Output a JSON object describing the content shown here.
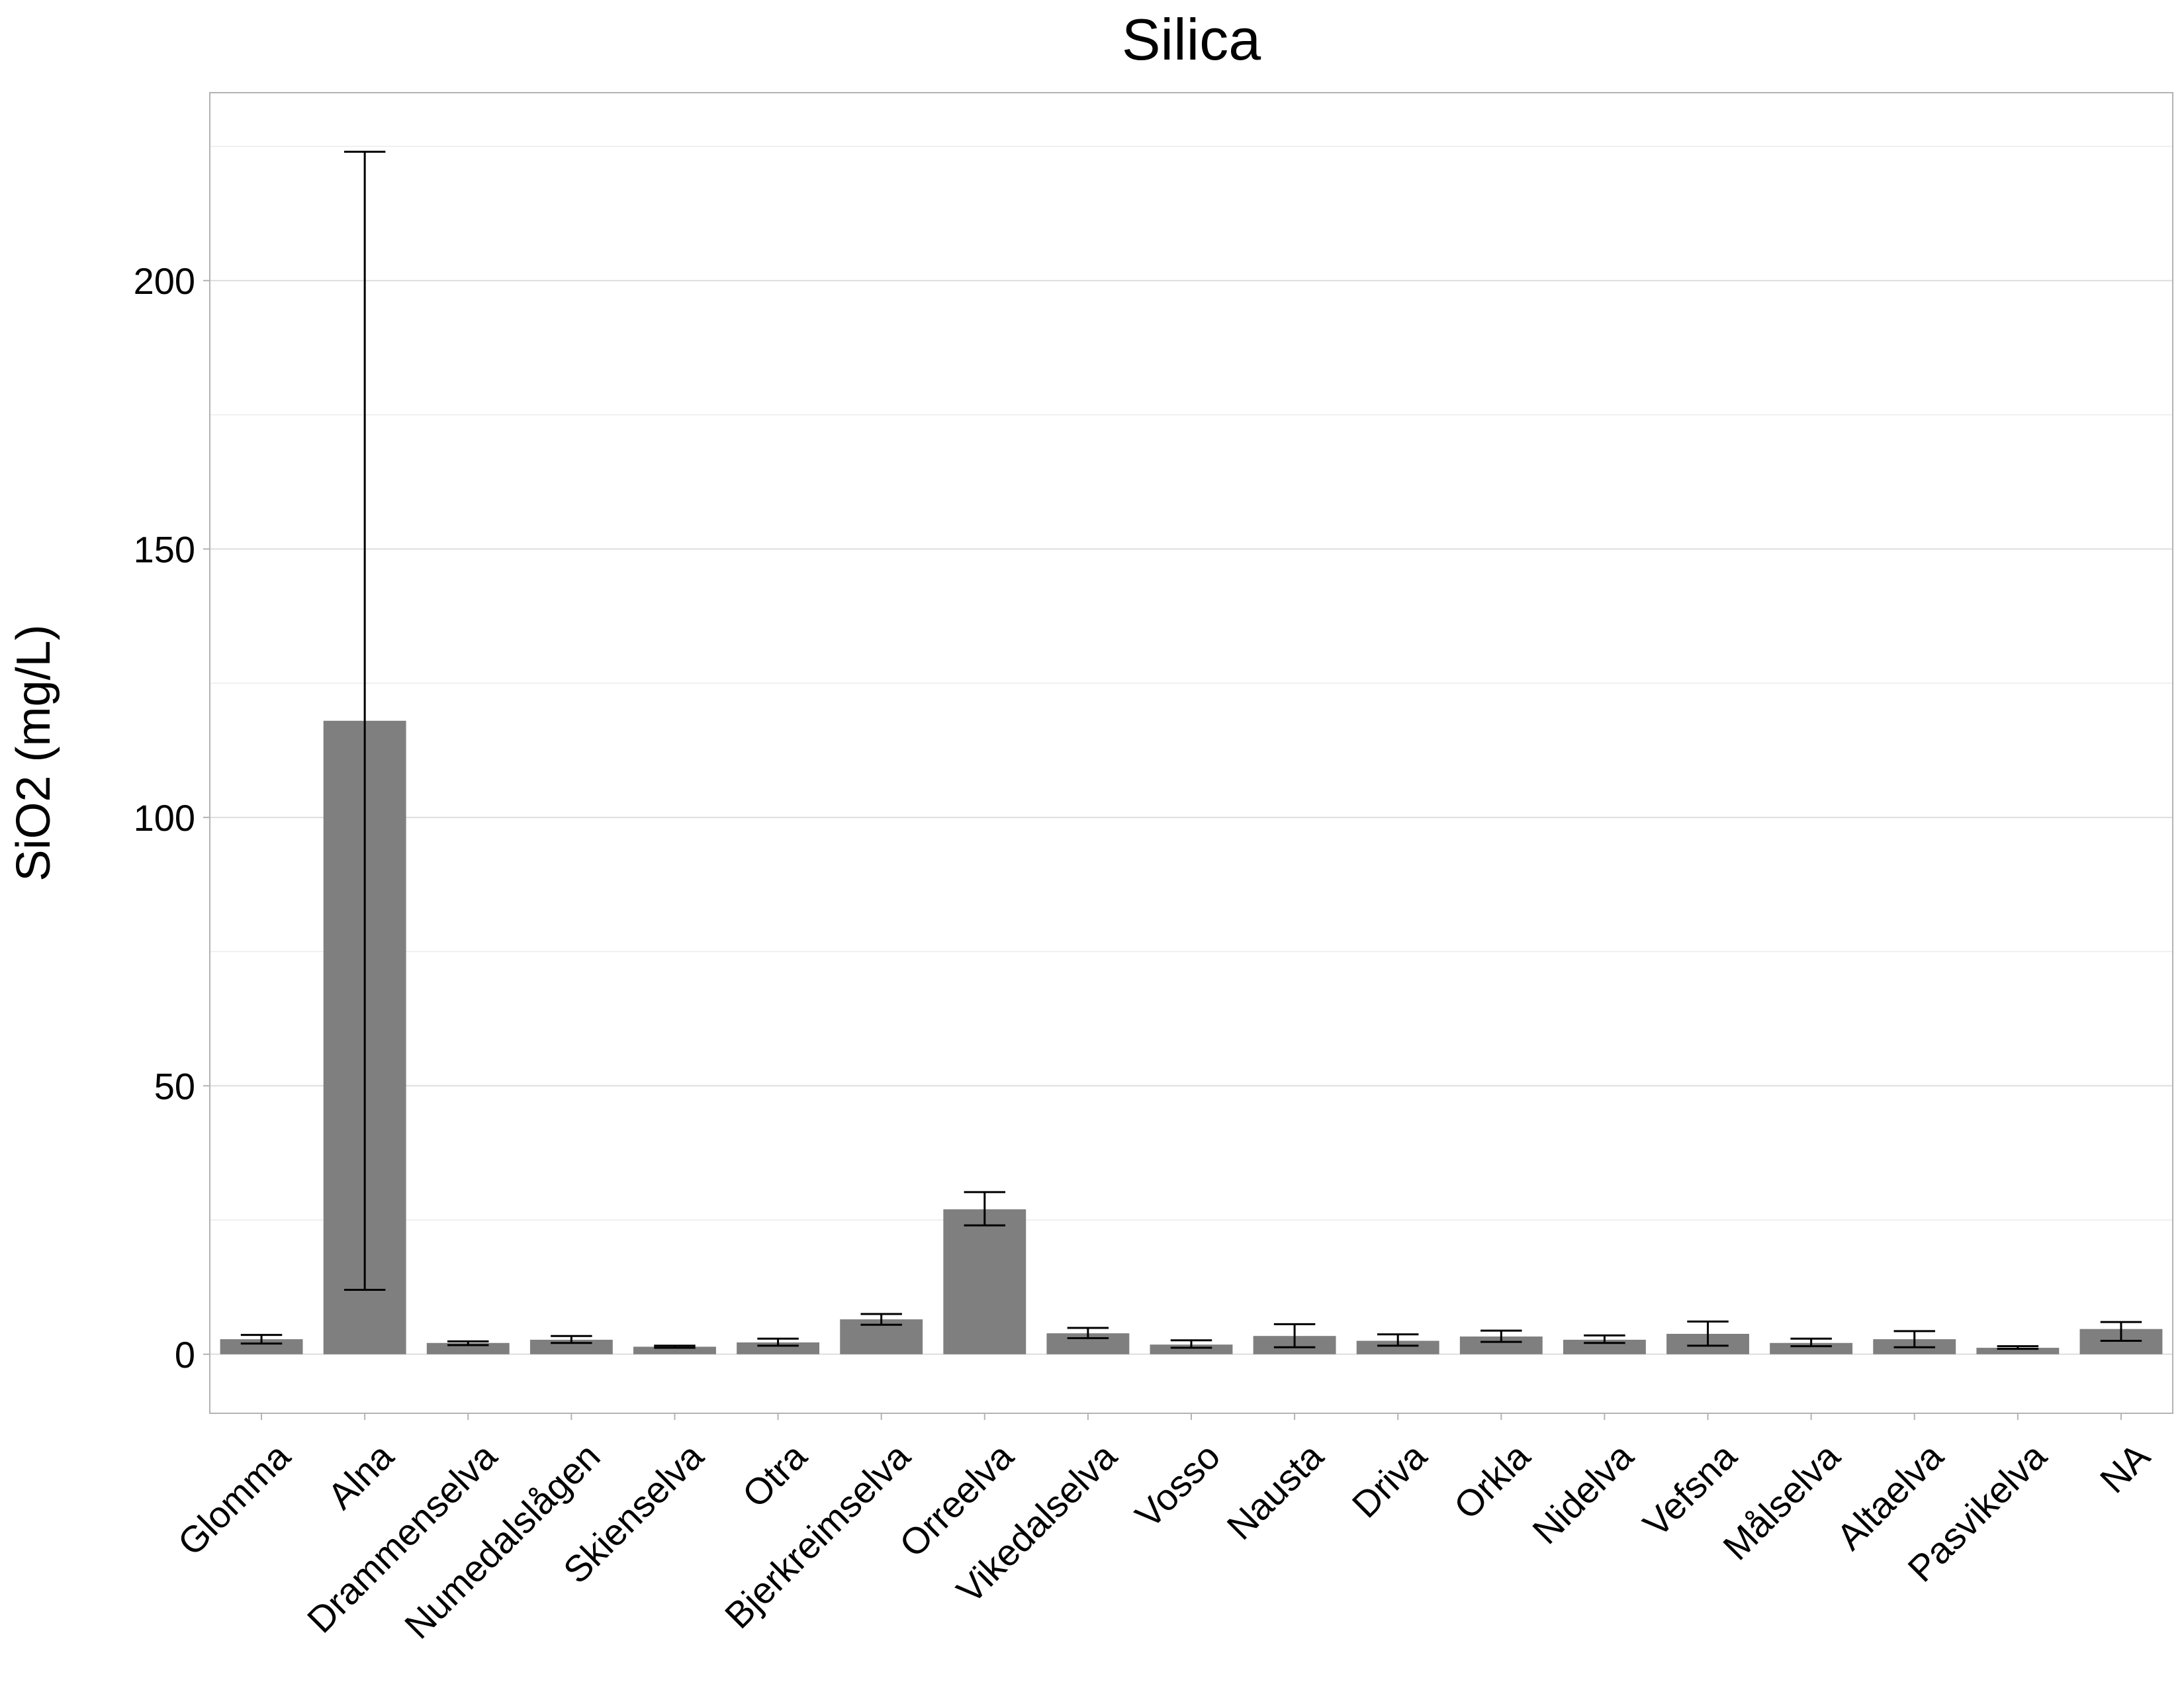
{
  "chart_data": {
    "type": "bar",
    "title": "Silica",
    "xlabel": "",
    "ylabel": "SiO2 (mg/L)",
    "ylim": [
      -11,
      235
    ],
    "yticks": [
      0,
      50,
      100,
      150,
      200
    ],
    "grid": true,
    "categories": [
      "Glomma",
      "Alna",
      "Drammenselva",
      "Numedalslågen",
      "Skienselva",
      "Otra",
      "Bjerkreimselva",
      "Orreelva",
      "Vikedalselva",
      "Vosso",
      "Nausta",
      "Driva",
      "Orkla",
      "Nidelva",
      "Vefsna",
      "Målselva",
      "Altaelva",
      "Pasvikelva",
      "NA"
    ],
    "values": [
      2.8,
      118,
      2.1,
      2.7,
      1.4,
      2.2,
      6.5,
      27,
      3.9,
      1.8,
      3.4,
      2.5,
      3.3,
      2.7,
      3.8,
      2.1,
      2.8,
      1.2,
      4.7
    ],
    "error_low": [
      2.0,
      12,
      1.7,
      2.1,
      1.2,
      1.6,
      5.5,
      24,
      3.0,
      1.2,
      1.3,
      1.6,
      2.3,
      2.1,
      1.6,
      1.5,
      1.3,
      1.0,
      2.5
    ],
    "error_high": [
      3.6,
      224,
      2.4,
      3.4,
      1.6,
      2.9,
      7.5,
      30.2,
      4.9,
      2.6,
      5.6,
      3.7,
      4.4,
      3.5,
      6.1,
      2.9,
      4.3,
      1.5,
      6.0
    ]
  }
}
